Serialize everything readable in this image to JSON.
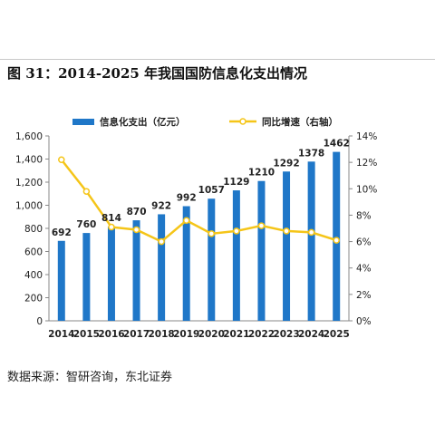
{
  "figure": {
    "title": "图 31：2014-2025 年我国国防信息化支出情况",
    "source": "数据来源：智研咨询，东北证券"
  },
  "chart_data": {
    "type": "bar",
    "categories": [
      "2014",
      "2015",
      "2016",
      "2017",
      "2018",
      "2019",
      "2020",
      "2021",
      "2022",
      "2023",
      "2024",
      "2025"
    ],
    "series": [
      {
        "name": "信息化支出（亿元）",
        "type": "bar",
        "axis": "left",
        "color": "#1f77c8",
        "values": [
          692,
          760,
          814,
          870,
          922,
          992,
          1057,
          1129,
          1210,
          1292,
          1378,
          1462
        ]
      },
      {
        "name": "同比增速（右轴）",
        "type": "line",
        "axis": "right",
        "color": "#f5c518",
        "values": [
          12.2,
          9.8,
          7.1,
          6.9,
          6.0,
          7.6,
          6.6,
          6.8,
          7.2,
          6.8,
          6.7,
          6.1
        ]
      }
    ],
    "y_left": {
      "ylim": [
        0,
        1600
      ],
      "ticks": [
        "0",
        "200",
        "400",
        "600",
        "800",
        "1,000",
        "1,200",
        "1,400",
        "1,600"
      ]
    },
    "y_right": {
      "ylim": [
        0,
        14
      ],
      "ticks": [
        "0%",
        "2%",
        "4%",
        "6%",
        "8%",
        "10%",
        "12%",
        "14%"
      ]
    },
    "legend_position": "top",
    "grid": false
  }
}
